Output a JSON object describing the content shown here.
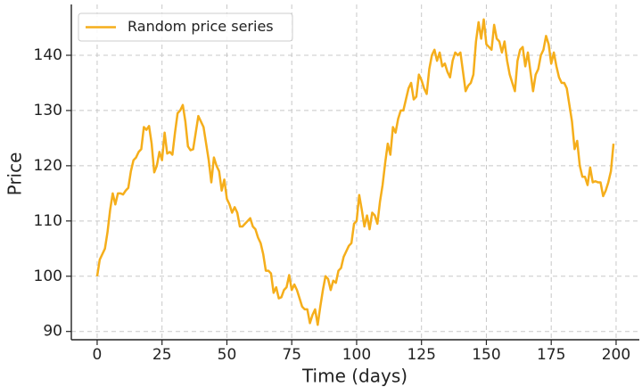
{
  "chart_data": {
    "type": "line",
    "xlabel": "Time (days)",
    "ylabel": "Price",
    "x": [
      0,
      1,
      2,
      3,
      4,
      5,
      6,
      7,
      8,
      9,
      10,
      11,
      12,
      13,
      14,
      15,
      16,
      17,
      18,
      19,
      20,
      21,
      22,
      23,
      24,
      25,
      26,
      27,
      28,
      29,
      30,
      31,
      32,
      33,
      34,
      35,
      36,
      37,
      38,
      39,
      40,
      41,
      42,
      43,
      44,
      45,
      46,
      47,
      48,
      49,
      50,
      51,
      52,
      53,
      54,
      55,
      56,
      57,
      58,
      59,
      60,
      61,
      62,
      63,
      64,
      65,
      66,
      67,
      68,
      69,
      70,
      71,
      72,
      73,
      74,
      75,
      76,
      77,
      78,
      79,
      80,
      81,
      82,
      83,
      84,
      85,
      86,
      87,
      88,
      89,
      90,
      91,
      92,
      93,
      94,
      95,
      96,
      97,
      98,
      99,
      100,
      101,
      102,
      103,
      104,
      105,
      106,
      107,
      108,
      109,
      110,
      111,
      112,
      113,
      114,
      115,
      116,
      117,
      118,
      119,
      120,
      121,
      122,
      123,
      124,
      125,
      126,
      127,
      128,
      129,
      130,
      131,
      132,
      133,
      134,
      135,
      136,
      137,
      138,
      139,
      140,
      141,
      142,
      143,
      144,
      145,
      146,
      147,
      148,
      149,
      150,
      151,
      152,
      153,
      154,
      155,
      156,
      157,
      158,
      159,
      160,
      161,
      162,
      163,
      164,
      165,
      166,
      167,
      168,
      169,
      170,
      171,
      172,
      173,
      174,
      175,
      176,
      177,
      178,
      179,
      180,
      181,
      182,
      183,
      184,
      185,
      186,
      187,
      188,
      189,
      190,
      191,
      192,
      193,
      194,
      195,
      196,
      197,
      198,
      199
    ],
    "series": [
      {
        "name": "Random price series",
        "color": "#f5ae1b",
        "values": [
          100,
          103,
          104,
          105,
          108,
          112,
          115,
          113,
          115,
          115,
          114.8,
          115.5,
          116,
          119,
          121,
          121.5,
          122.5,
          123,
          127,
          126.5,
          127.2,
          124,
          118.8,
          120,
          122.5,
          121,
          126,
          122.2,
          122.5,
          122,
          126,
          129.5,
          130,
          131,
          128,
          123.5,
          122.8,
          123,
          126,
          129,
          128,
          127,
          124,
          121,
          117,
          121.5,
          120,
          119,
          115.5,
          117.5,
          114,
          113,
          111.5,
          112.5,
          111.5,
          109,
          109,
          109.5,
          110,
          110.5,
          109,
          108.5,
          107,
          106,
          104,
          101,
          101,
          100.5,
          97,
          98,
          96,
          96.2,
          97.5,
          98,
          100.2,
          97.5,
          98.5,
          97.5,
          96,
          94.5,
          94,
          94,
          91.5,
          93,
          94,
          91.2,
          94.5,
          97.5,
          100,
          99.5,
          97.5,
          99.2,
          98.8,
          101,
          101.5,
          103.5,
          104.5,
          105.5,
          106,
          109.5,
          110,
          114.7,
          112,
          109,
          111,
          108.5,
          111.5,
          111,
          109.5,
          113.5,
          116.5,
          120.5,
          124,
          122,
          127,
          126,
          128.5,
          130,
          130,
          132,
          134,
          135,
          132,
          132.5,
          136.5,
          135.5,
          134,
          133,
          137.5,
          140,
          141,
          139,
          140.5,
          138,
          138.5,
          137,
          136,
          139,
          140.5,
          140,
          140.5,
          137,
          133.5,
          134.5,
          135,
          136.5,
          142.5,
          146,
          143,
          146.5,
          142,
          141.5,
          141,
          145.5,
          143,
          142.5,
          140.5,
          142.5,
          139,
          136.5,
          135,
          133.5,
          139,
          141,
          141.5,
          138,
          140.5,
          137,
          133.5,
          136.5,
          137.5,
          140,
          141,
          143.5,
          142,
          138.5,
          140.5,
          138,
          136,
          135,
          135,
          134,
          131,
          128,
          123,
          124.5,
          120,
          118,
          118,
          116.5,
          119.7,
          117,
          117.2,
          117,
          117,
          114.5,
          115.5,
          117,
          119,
          124
        ]
      }
    ],
    "xlim": [
      -9.95,
      208.95
    ],
    "xticks": [
      0,
      25,
      50,
      75,
      100,
      125,
      150,
      175,
      200
    ],
    "ylim": [
      88.5,
      149.2
    ],
    "yticks": [
      90,
      100,
      110,
      120,
      130,
      140
    ],
    "grid": true,
    "legend": "upper left"
  }
}
